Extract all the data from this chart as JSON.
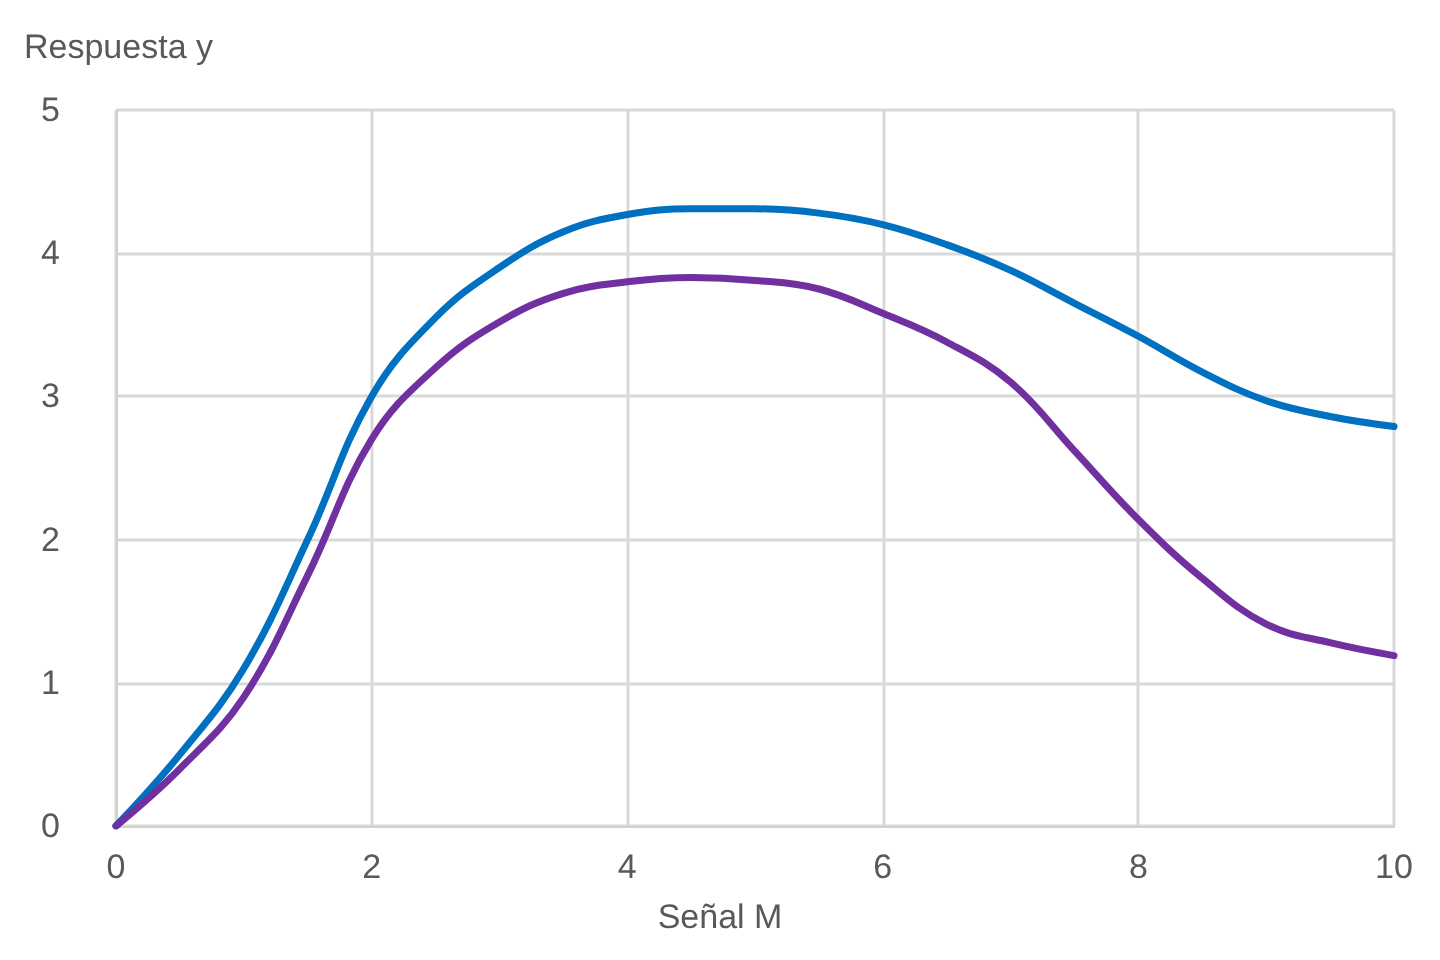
{
  "chart_data": {
    "type": "line",
    "xlabel": "Señal M",
    "ylabel": "Respuesta y",
    "x": [
      0,
      0.5,
      1,
      1.5,
      2,
      2.5,
      3,
      3.5,
      4,
      4.5,
      5,
      5.5,
      6,
      6.5,
      7,
      7.5,
      8,
      8.5,
      9,
      9.5,
      10
    ],
    "series": [
      {
        "color": "#0070c0",
        "values": [
          0,
          0.5,
          1.1,
          2.0,
          3.0,
          3.55,
          3.9,
          4.15,
          4.27,
          4.31,
          4.31,
          4.28,
          4.2,
          4.06,
          3.88,
          3.65,
          3.42,
          3.17,
          2.97,
          2.86,
          2.79
        ]
      },
      {
        "color": "#7030a0",
        "values": [
          0,
          0.4,
          0.9,
          1.75,
          2.7,
          3.2,
          3.52,
          3.72,
          3.8,
          3.83,
          3.81,
          3.75,
          3.58,
          3.38,
          3.1,
          2.62,
          2.14,
          1.73,
          1.41,
          1.28,
          1.19
        ]
      }
    ],
    "xlim": [
      0,
      10
    ],
    "xticks": [
      0,
      2,
      4,
      6,
      8,
      10
    ],
    "ylim": [
      0,
      5
    ],
    "yticks": [
      0,
      1,
      2,
      3,
      4,
      5
    ],
    "grid": true,
    "marker": "none",
    "line_style": "solid"
  }
}
